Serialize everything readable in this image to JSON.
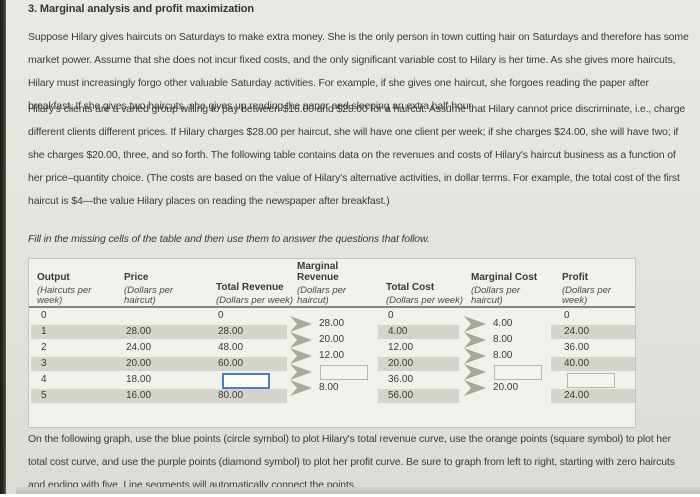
{
  "page": {
    "title": "3. Marginal analysis and profit maximization",
    "paragraph1": "Suppose Hilary gives haircuts on Saturdays to make extra money. She is the only person in town cutting hair on Saturdays and therefore has some market power. Assume that she does not incur fixed costs, and the only significant variable cost to Hilary is her time. As she gives more haircuts, Hilary must increasingly forgo other valuable Saturday activities. For example, if she gives one haircut, she forgoes reading the paper after breakfast. If she gives two haircuts, she gives up reading the paper and sleeping an extra half-hour.",
    "paragraph2": "Hilary's clients are a varied group willing to pay between $16.00 and $28.00 for a haircut. Assume that Hilary cannot price discriminate, i.e., charge different clients different prices. If Hilary charges $28.00 per haircut, she will have one client per week; if she charges $24.00, she will have two; if she charges $20.00, three, and so forth. The following table contains data on the revenues and costs of Hilary's haircut business as a function of her price–quantity choice. (The costs are based on the value of Hilary's alternative activities, in dollar terms. For example, the total cost of the first haircut is $4—the value Hilary places on reading the newspaper after breakfast.)",
    "fill_instruction": "Fill in the missing cells of the table and then use them to answer the questions that follow.",
    "graph_instruction": "On the following graph, use the blue points (circle symbol) to plot Hilary's total revenue curve, use the orange points (square symbol) to plot her total cost curve, and use the purple points (diamond symbol) to plot her profit curve. Be sure to graph from left to right, starting with zero haircuts and ending with five. Line segments will automatically connect the points."
  },
  "table": {
    "columns": [
      {
        "label": "Output",
        "sublabel": "(Haircuts per week)"
      },
      {
        "label": "Price",
        "sublabel": "(Dollars per haircut)"
      },
      {
        "label": "Total Revenue",
        "sublabel": "(Dollars per week)"
      },
      {
        "label": "Marginal Revenue",
        "sublabel": "(Dollars per haircut)"
      },
      {
        "label": "Total Cost",
        "sublabel": "(Dollars per week)"
      },
      {
        "label": "Marginal Cost",
        "sublabel": "(Dollars per haircut)"
      },
      {
        "label": "Profit",
        "sublabel": "(Dollars per week)"
      }
    ],
    "rows": [
      {
        "output": "0",
        "price": "",
        "total_revenue": "0",
        "total_cost": "0",
        "profit": "0"
      },
      {
        "output": "1",
        "price": "28.00",
        "total_revenue": "28.00",
        "total_cost": "4.00",
        "profit": "24.00"
      },
      {
        "output": "2",
        "price": "24.00",
        "total_revenue": "48.00",
        "total_cost": "12.00",
        "profit": "36.00"
      },
      {
        "output": "3",
        "price": "20.00",
        "total_revenue": "60.00",
        "total_cost": "20.00",
        "profit": "40.00"
      },
      {
        "output": "4",
        "price": "18.00",
        "total_revenue": null,
        "total_cost": "36.00",
        "profit": null
      },
      {
        "output": "5",
        "price": "16.00",
        "total_revenue": "80.00",
        "total_cost": "56.00",
        "profit": "24.00"
      }
    ],
    "marginal_revenue": [
      "28.00",
      "20.00",
      "12.00",
      null,
      "8.00"
    ],
    "marginal_cost": [
      "4.00",
      "8.00",
      "8.00",
      null,
      "20.00"
    ],
    "focused_cell": {
      "row": 4,
      "column": "total_revenue"
    }
  },
  "colors": {
    "focused_input_border": "#4d7fc0",
    "empty_input_border": "#b5b5ab",
    "row_shade": "#d4d4cc",
    "chevron": "#a8a89e",
    "plot_point_blue": "blue points (circle symbol)",
    "plot_point_orange": "orange points (square symbol)",
    "plot_point_purple": "purple points (diamond symbol)"
  }
}
